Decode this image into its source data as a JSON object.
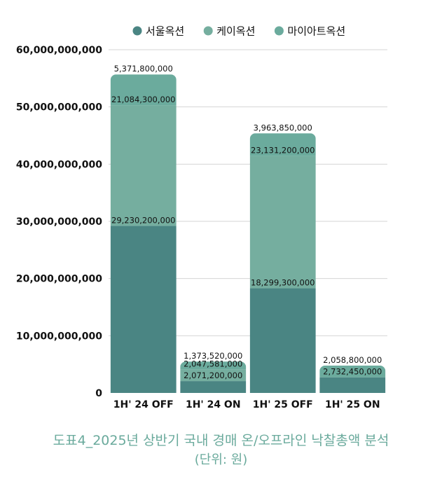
{
  "chart_data": {
    "type": "bar",
    "stacked": true,
    "categories": [
      "1H' 24 OFF",
      "1H' 24 ON",
      "1H' 25 OFF",
      "1H' 25 ON"
    ],
    "series": [
      {
        "name": "서울옥션",
        "color": "#4a8583",
        "values": [
          29230200000,
          2071200000,
          18299300000,
          2732450000
        ]
      },
      {
        "name": "케이옥션",
        "color": "#75ae9f",
        "values": [
          21084300000,
          2047581000,
          23131200000,
          0
        ]
      },
      {
        "name": "마이아트옥션",
        "color": "#6bab9d",
        "values": [
          5371800000,
          1373520000,
          3963850000,
          2058800000
        ]
      }
    ],
    "segment_labels": [
      [
        "29,230,200,000",
        "2,071,200,000",
        "18,299,300,000",
        "2,732,450,000"
      ],
      [
        "21,084,300,000",
        "2,047,581,000",
        "23,131,200,000",
        ""
      ],
      [
        "5,371,800,000",
        "1,373,520,000",
        "3,963,850,000",
        "2,058,800,000"
      ]
    ],
    "y_ticks": [
      "0",
      "10,000,000,000",
      "20,000,000,000",
      "30,000,000,000",
      "40,000,000,000",
      "50,000,000,000",
      "60,000,000,000"
    ],
    "ylim": [
      0,
      60000000000
    ],
    "grid": true,
    "legend_position": "top"
  },
  "caption": {
    "line1": "도표4_2025년 상반기 국내 경매  온/오프라인 낙찰총액 분석",
    "line2": "(단위: 원)"
  }
}
